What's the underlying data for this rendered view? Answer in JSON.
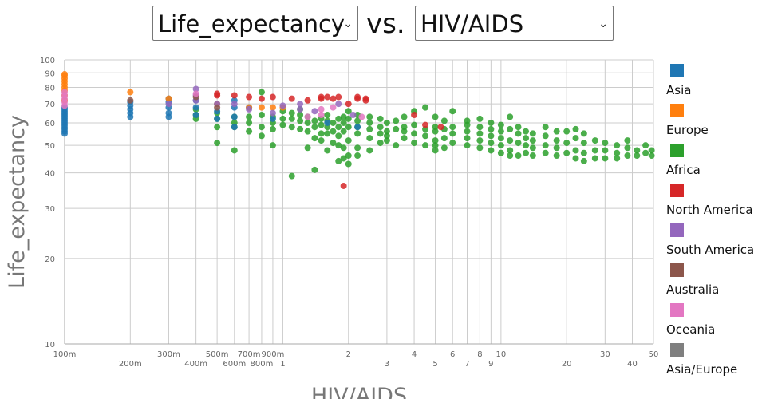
{
  "controls": {
    "y_select": "Life_expectancy",
    "vs": "vs.",
    "x_select": "HIV/AIDS"
  },
  "chart_data": {
    "type": "scatter",
    "xlabel": "HIV/AIDS",
    "ylabel": "Life_expectancy",
    "xscale": "log",
    "yscale": "log",
    "xlim": [
      0.1,
      50
    ],
    "ylim": [
      10,
      100
    ],
    "xticks": [
      {
        "v": 0.1,
        "l": "100m"
      },
      {
        "v": 0.2,
        "l": "200m"
      },
      {
        "v": 0.3,
        "l": "300m"
      },
      {
        "v": 0.4,
        "l": "400m"
      },
      {
        "v": 0.5,
        "l": "500m"
      },
      {
        "v": 0.6,
        "l": "600m"
      },
      {
        "v": 0.7,
        "l": "700m"
      },
      {
        "v": 0.8,
        "l": "800m"
      },
      {
        "v": 0.9,
        "l": "900m"
      },
      {
        "v": 1,
        "l": "1"
      },
      {
        "v": 2,
        "l": "2"
      },
      {
        "v": 3,
        "l": "3"
      },
      {
        "v": 4,
        "l": "4"
      },
      {
        "v": 5,
        "l": "5"
      },
      {
        "v": 6,
        "l": "6"
      },
      {
        "v": 7,
        "l": "7"
      },
      {
        "v": 8,
        "l": "8"
      },
      {
        "v": 9,
        "l": "9"
      },
      {
        "v": 10,
        "l": "10"
      },
      {
        "v": 20,
        "l": "20"
      },
      {
        "v": 30,
        "l": "30"
      },
      {
        "v": 40,
        "l": "40"
      },
      {
        "v": 50,
        "l": "50"
      }
    ],
    "yticks": [
      {
        "v": 10,
        "l": "10"
      },
      {
        "v": 20,
        "l": "20"
      },
      {
        "v": 30,
        "l": "30"
      },
      {
        "v": 40,
        "l": "40"
      },
      {
        "v": 50,
        "l": "50"
      },
      {
        "v": 60,
        "l": "60"
      },
      {
        "v": 70,
        "l": "70"
      },
      {
        "v": 80,
        "l": "80"
      },
      {
        "v": 90,
        "l": "90"
      },
      {
        "v": 100,
        "l": "100"
      }
    ],
    "grid": true,
    "legend_position": "right",
    "series": [
      {
        "name": "Asia",
        "color": "#1f77b4",
        "groups": [
          [
            0.1,
            [
              55,
              56,
              57,
              58,
              59,
              60,
              61,
              62,
              63,
              64,
              65,
              66,
              67,
              68
            ]
          ],
          [
            0.2,
            [
              63,
              65,
              67,
              69,
              71
            ]
          ],
          [
            0.3,
            [
              63,
              65,
              68,
              71,
              73
            ]
          ],
          [
            0.4,
            [
              64,
              68,
              72
            ]
          ],
          [
            0.5,
            [
              62,
              66,
              70
            ]
          ],
          [
            0.6,
            [
              58,
              63,
              68,
              72
            ]
          ],
          [
            0.7,
            [
              68
            ]
          ],
          [
            0.9,
            [
              62
            ]
          ],
          [
            1.6,
            [
              60
            ]
          ],
          [
            2.2,
            [
              58
            ]
          ]
        ]
      },
      {
        "name": "Europe",
        "color": "#ff7f0e",
        "groups": [
          [
            0.1,
            [
              72,
              75,
              78,
              80,
              82,
              84,
              86,
              88,
              89
            ]
          ],
          [
            0.2,
            [
              77
            ]
          ],
          [
            0.3,
            [
              73
            ]
          ],
          [
            0.5,
            [
              70
            ]
          ],
          [
            0.7,
            [
              68
            ]
          ],
          [
            0.8,
            [
              68
            ]
          ],
          [
            0.9,
            [
              68
            ]
          ],
          [
            1.0,
            [
              68
            ]
          ]
        ]
      },
      {
        "name": "Africa",
        "color": "#2ca02c",
        "groups": [
          [
            0.4,
            [
              62,
              64,
              67
            ]
          ],
          [
            0.5,
            [
              51,
              58,
              62,
              65
            ]
          ],
          [
            0.6,
            [
              48,
              58,
              60,
              63
            ]
          ],
          [
            0.7,
            [
              56,
              60,
              63
            ]
          ],
          [
            0.8,
            [
              54,
              58,
              64,
              77
            ]
          ],
          [
            0.9,
            [
              50,
              57,
              60,
              63
            ]
          ],
          [
            1.0,
            [
              59,
              62,
              66
            ]
          ],
          [
            1.1,
            [
              39,
              58,
              62,
              65
            ]
          ],
          [
            1.2,
            [
              57,
              61,
              64,
              67
            ]
          ],
          [
            1.3,
            [
              49,
              56,
              60,
              63
            ]
          ],
          [
            1.4,
            [
              41,
              53,
              58,
              61
            ]
          ],
          [
            1.5,
            [
              52,
              55,
              59,
              62
            ]
          ],
          [
            1.6,
            [
              48,
              55,
              58,
              61,
              64
            ]
          ],
          [
            1.7,
            [
              51,
              56,
              60
            ]
          ],
          [
            1.8,
            [
              44,
              50,
              54,
              58,
              62
            ]
          ],
          [
            1.9,
            [
              45,
              49,
              56,
              60,
              63
            ]
          ],
          [
            2.0,
            [
              43,
              46,
              52,
              58,
              62,
              66
            ]
          ],
          [
            2.2,
            [
              46,
              49,
              55,
              58,
              61,
              64
            ]
          ],
          [
            2.5,
            [
              48,
              53,
              57,
              60,
              63
            ]
          ],
          [
            2.8,
            [
              51,
              55,
              58,
              62
            ]
          ],
          [
            3,
            [
              52,
              54,
              56,
              60
            ]
          ],
          [
            3.3,
            [
              50,
              57,
              61
            ]
          ],
          [
            3.6,
            [
              53,
              56,
              58,
              63
            ]
          ],
          [
            4,
            [
              51,
              55,
              59,
              66
            ]
          ],
          [
            4.5,
            [
              50,
              54,
              57,
              68
            ]
          ],
          [
            5,
            [
              48,
              50,
              52,
              56,
              58,
              63
            ]
          ],
          [
            5.5,
            [
              49,
              53,
              57,
              61
            ]
          ],
          [
            6,
            [
              51,
              55,
              58,
              66
            ]
          ],
          [
            7,
            [
              50,
              53,
              56,
              59,
              61
            ]
          ],
          [
            8,
            [
              49,
              52,
              55,
              58,
              62
            ]
          ],
          [
            9,
            [
              48,
              51,
              54,
              57,
              60
            ]
          ],
          [
            10,
            [
              47,
              50,
              53,
              56,
              59
            ]
          ],
          [
            11,
            [
              46,
              48,
              52,
              57,
              63
            ]
          ],
          [
            12,
            [
              46,
              51,
              55,
              58
            ]
          ],
          [
            13,
            [
              47,
              50,
              53,
              56
            ]
          ],
          [
            14,
            [
              46,
              49,
              52,
              55
            ]
          ],
          [
            16,
            [
              47,
              50,
              54,
              58
            ]
          ],
          [
            18,
            [
              46,
              49,
              52,
              56
            ]
          ],
          [
            20,
            [
              47,
              51,
              56
            ]
          ],
          [
            22,
            [
              45,
              48,
              53,
              57
            ]
          ],
          [
            24,
            [
              44,
              47,
              51,
              55
            ]
          ],
          [
            27,
            [
              45,
              48,
              52
            ]
          ],
          [
            30,
            [
              45,
              48,
              51
            ]
          ],
          [
            34,
            [
              45,
              47,
              50
            ]
          ],
          [
            38,
            [
              46,
              49,
              52
            ]
          ],
          [
            42,
            [
              46,
              48
            ]
          ],
          [
            46,
            [
              47,
              50
            ]
          ],
          [
            49,
            [
              46,
              48
            ]
          ]
        ]
      },
      {
        "name": "North America",
        "color": "#d62728",
        "groups": [
          [
            0.5,
            [
              75,
              76
            ]
          ],
          [
            0.6,
            [
              75
            ]
          ],
          [
            0.7,
            [
              74
            ]
          ],
          [
            0.8,
            [
              73
            ]
          ],
          [
            0.9,
            [
              74
            ]
          ],
          [
            1.1,
            [
              73
            ]
          ],
          [
            1.3,
            [
              72
            ]
          ],
          [
            1.5,
            [
              73,
              74
            ]
          ],
          [
            1.6,
            [
              74
            ]
          ],
          [
            1.7,
            [
              73
            ]
          ],
          [
            1.8,
            [
              74
            ]
          ],
          [
            1.9,
            [
              36
            ]
          ],
          [
            2,
            [
              70
            ]
          ],
          [
            2.2,
            [
              73,
              74
            ]
          ],
          [
            2.4,
            [
              72,
              73
            ]
          ],
          [
            4,
            [
              64
            ]
          ],
          [
            4.5,
            [
              59
            ]
          ],
          [
            5.3,
            [
              58
            ]
          ]
        ]
      },
      {
        "name": "South America",
        "color": "#9467bd",
        "groups": [
          [
            0.3,
            [
              70
            ]
          ],
          [
            0.4,
            [
              72,
              75,
              79
            ]
          ],
          [
            0.5,
            [
              70
            ]
          ],
          [
            0.6,
            [
              70
            ]
          ],
          [
            0.7,
            [
              67
            ]
          ],
          [
            0.9,
            [
              65
            ]
          ],
          [
            1.0,
            [
              69
            ]
          ],
          [
            1.2,
            [
              67,
              70
            ]
          ],
          [
            1.4,
            [
              66
            ]
          ],
          [
            1.8,
            [
              70
            ]
          ],
          [
            2.1,
            [
              64
            ]
          ]
        ]
      },
      {
        "name": "Australia",
        "color": "#8c564b",
        "groups": [
          [
            0.2,
            [
              72
            ]
          ],
          [
            0.4,
            [
              74
            ]
          ],
          [
            0.5,
            [
              68
            ]
          ]
        ]
      },
      {
        "name": "Oceania",
        "color": "#e377c2",
        "groups": [
          [
            0.1,
            [
              69,
              71,
              73,
              75,
              77
            ]
          ],
          [
            0.4,
            [
              76
            ]
          ],
          [
            1.3,
            [
              63
            ]
          ],
          [
            1.5,
            [
              64,
              67
            ]
          ],
          [
            1.7,
            [
              68
            ]
          ],
          [
            2.3,
            [
              63
            ]
          ]
        ]
      },
      {
        "name": "Asia/Europe",
        "color": "#7f7f7f",
        "groups": []
      }
    ]
  }
}
